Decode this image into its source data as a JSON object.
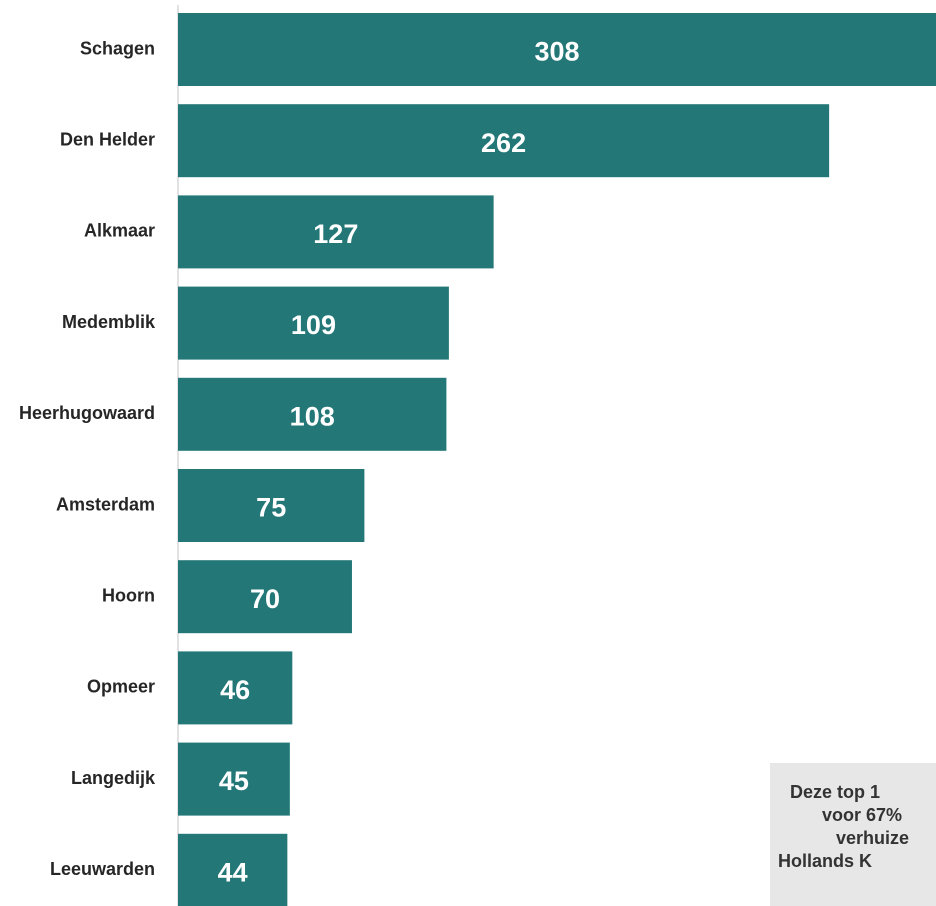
{
  "chart_data": {
    "type": "barh",
    "categories": [
      "Schagen",
      "Den Helder",
      "Alkmaar",
      "Medemblik",
      "Heerhugowaard",
      "Amsterdam",
      "Hoorn",
      "Opmeer",
      "Langedijk",
      "Leeuwarden"
    ],
    "values": [
      308,
      262,
      127,
      109,
      108,
      75,
      70,
      46,
      45,
      44
    ],
    "color": "#237777",
    "xlim": [
      0,
      305
    ],
    "annotation": [
      "Deze top 1",
      "voor 67%",
      "verhuize",
      "Hollands K"
    ]
  }
}
